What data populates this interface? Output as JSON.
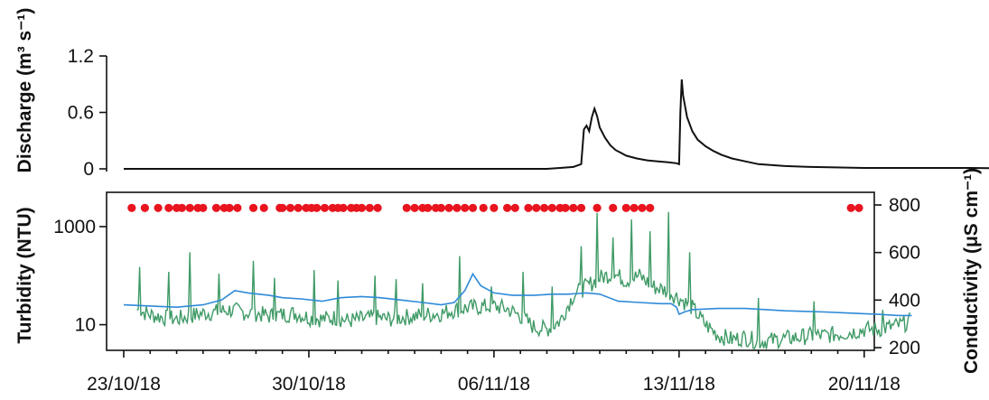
{
  "chart_data": [
    {
      "type": "line",
      "title": "",
      "ylabel": "Discharge (m³ s⁻¹)",
      "ylim": [
        0,
        1.2
      ],
      "yticks": [
        "0",
        "0.6",
        "1.2"
      ],
      "series": [
        {
          "color": "#111111",
          "points": [
            [
              0,
              0.0
            ],
            [
              15,
              0.0
            ],
            [
              16,
              0.0
            ],
            [
              16.5,
              0.01
            ],
            [
              17,
              0.02
            ],
            [
              17.3,
              0.05
            ],
            [
              17.4,
              0.42
            ],
            [
              17.5,
              0.46
            ],
            [
              17.6,
              0.4
            ],
            [
              17.7,
              0.55
            ],
            [
              17.8,
              0.64
            ],
            [
              17.9,
              0.56
            ],
            [
              18.0,
              0.44
            ],
            [
              18.2,
              0.33
            ],
            [
              18.4,
              0.25
            ],
            [
              18.6,
              0.2
            ],
            [
              18.8,
              0.17
            ],
            [
              19.0,
              0.14
            ],
            [
              19.4,
              0.11
            ],
            [
              19.8,
              0.09
            ],
            [
              20.2,
              0.08
            ],
            [
              20.6,
              0.07
            ],
            [
              20.9,
              0.06
            ],
            [
              21.0,
              0.05
            ],
            [
              21.05,
              0.6
            ],
            [
              21.1,
              0.95
            ],
            [
              21.15,
              0.78
            ],
            [
              21.3,
              0.55
            ],
            [
              21.5,
              0.4
            ],
            [
              21.7,
              0.31
            ],
            [
              22.0,
              0.24
            ],
            [
              22.3,
              0.19
            ],
            [
              22.6,
              0.15
            ],
            [
              23.0,
              0.11
            ],
            [
              23.5,
              0.08
            ],
            [
              24.0,
              0.05
            ],
            [
              25.0,
              0.03
            ],
            [
              26,
              0.02
            ],
            [
              28,
              0.01
            ],
            [
              32,
              0.01
            ],
            [
              35,
              0.0
            ],
            [
              40.8,
              0.0
            ]
          ]
        }
      ]
    },
    {
      "type": "line",
      "ylabel": "Turbidity (NTU)",
      "ylabel_right": "Conductivity (μS cm⁻¹)",
      "ylim_left_log": [
        3,
        5000
      ],
      "yticks_left": [
        "10",
        "1000"
      ],
      "ylim_right": [
        200,
        800
      ],
      "yticks_right": [
        "200",
        "400",
        "600",
        "800"
      ],
      "xlabel": "",
      "x_range_days_from_first_tick": [
        -1.15,
        28.6
      ],
      "xticks": [
        "23/10/18",
        "30/10/18",
        "06/11/18",
        "13/11/18",
        "20/11/18"
      ],
      "series": [
        {
          "color": "#3f9a66",
          "axis": "left-log",
          "base_points": [
            [
              0.5,
              20
            ],
            [
              1,
              16
            ],
            [
              1.5,
              14
            ],
            [
              2,
              13
            ],
            [
              2.5,
              15
            ],
            [
              3,
              17
            ],
            [
              3.5,
              18
            ],
            [
              4,
              20
            ],
            [
              4.5,
              18
            ],
            [
              5,
              17
            ],
            [
              5.5,
              15
            ],
            [
              6,
              16
            ],
            [
              6.5,
              17
            ],
            [
              7,
              14
            ],
            [
              7.5,
              13
            ],
            [
              8,
              14
            ],
            [
              8.5,
              12
            ],
            [
              9,
              13
            ],
            [
              9.5,
              14
            ],
            [
              10,
              13
            ],
            [
              10.5,
              14
            ],
            [
              11,
              15
            ],
            [
              11.5,
              16
            ],
            [
              12,
              17
            ],
            [
              12.5,
              20
            ],
            [
              13,
              22
            ],
            [
              13.5,
              23
            ],
            [
              14,
              24
            ],
            [
              14.5,
              21
            ],
            [
              15,
              15
            ],
            [
              15.5,
              9
            ],
            [
              16,
              8
            ],
            [
              16.5,
              12
            ],
            [
              17,
              40
            ],
            [
              17.5,
              60
            ],
            [
              18,
              90
            ],
            [
              18.5,
              110
            ],
            [
              19,
              80
            ],
            [
              19.5,
              100
            ],
            [
              20,
              60
            ],
            [
              20.5,
              50
            ],
            [
              21,
              35
            ],
            [
              21.5,
              22
            ],
            [
              22,
              10
            ],
            [
              22.5,
              6
            ],
            [
              23,
              5
            ],
            [
              23.5,
              5.5
            ],
            [
              24,
              4.5
            ],
            [
              24.5,
              4.8
            ],
            [
              25,
              5.2
            ],
            [
              25.5,
              5.5
            ],
            [
              26,
              6
            ],
            [
              26.5,
              6
            ],
            [
              27,
              6.5
            ],
            [
              27.5,
              7
            ],
            [
              28,
              8
            ],
            [
              28.5,
              8
            ],
            [
              29,
              9
            ],
            [
              29.4,
              10
            ],
            [
              29.8,
              12
            ]
          ],
          "spikes": [
            [
              0.6,
              150
            ],
            [
              1.7,
              120
            ],
            [
              2.5,
              300
            ],
            [
              3.6,
              110
            ],
            [
              4.9,
              200
            ],
            [
              5.7,
              90
            ],
            [
              7.2,
              130
            ],
            [
              8.1,
              80
            ],
            [
              9.5,
              100
            ],
            [
              10.3,
              85
            ],
            [
              11.3,
              70
            ],
            [
              12.7,
              250
            ],
            [
              13.9,
              60
            ],
            [
              15.1,
              120
            ],
            [
              16.2,
              60
            ],
            [
              17.3,
              400
            ],
            [
              17.9,
              1900
            ],
            [
              18.5,
              600
            ],
            [
              19.2,
              1400
            ],
            [
              19.9,
              800
            ],
            [
              20.6,
              2000
            ],
            [
              21.4,
              300
            ],
            [
              24.0,
              35
            ],
            [
              26.1,
              30
            ],
            [
              28.7,
              20
            ],
            [
              30.5,
              30
            ]
          ]
        },
        {
          "color": "#2e8ad8",
          "axis": "right-linear",
          "points": [
            [
              0,
              380
            ],
            [
              1,
              375
            ],
            [
              2,
              370
            ],
            [
              3,
              380
            ],
            [
              3.7,
              400
            ],
            [
              4.2,
              440
            ],
            [
              4.7,
              430
            ],
            [
              5.5,
              420
            ],
            [
              6,
              410
            ],
            [
              6.7,
              405
            ],
            [
              7.5,
              395
            ],
            [
              8.2,
              410
            ],
            [
              9,
              415
            ],
            [
              9.7,
              410
            ],
            [
              10.5,
              400
            ],
            [
              11.3,
              390
            ],
            [
              12,
              380
            ],
            [
              12.5,
              390
            ],
            [
              12.9,
              440
            ],
            [
              13.2,
              510
            ],
            [
              13.5,
              460
            ],
            [
              14,
              430
            ],
            [
              14.7,
              420
            ],
            [
              15.5,
              420
            ],
            [
              16.2,
              425
            ],
            [
              16.8,
              425
            ],
            [
              17.5,
              430
            ],
            [
              18,
              425
            ],
            [
              18.7,
              395
            ],
            [
              19.5,
              390
            ],
            [
              20.3,
              385
            ],
            [
              20.7,
              385
            ],
            [
              20.9,
              370
            ],
            [
              21,
              340
            ],
            [
              21.2,
              350
            ],
            [
              21.5,
              360
            ],
            [
              22.5,
              365
            ],
            [
              23.5,
              365
            ],
            [
              25,
              355
            ],
            [
              26.5,
              350
            ],
            [
              27.5,
              345
            ],
            [
              28.5,
              340
            ],
            [
              29.3,
              335
            ],
            [
              29.8,
              335
            ]
          ]
        }
      ],
      "markers": {
        "color": "#e8141e",
        "y_left_log": 2400,
        "x": [
          0.3,
          0.8,
          1.3,
          1.7,
          2.0,
          2.2,
          2.5,
          2.8,
          3.0,
          3.5,
          3.8,
          4.0,
          4.3,
          4.9,
          5.3,
          5.9,
          6.0,
          6.3,
          6.6,
          6.9,
          7.1,
          7.3,
          7.6,
          7.9,
          8.1,
          8.3,
          8.6,
          8.8,
          9.0,
          9.3,
          9.6,
          10.7,
          11.0,
          11.3,
          11.5,
          11.8,
          12.0,
          12.3,
          12.6,
          12.9,
          13.2,
          13.6,
          14.0,
          14.5,
          14.8,
          15.3,
          15.6,
          15.9,
          16.2,
          16.5,
          16.7,
          17.0,
          17.3,
          17.9,
          18.5,
          19.0,
          19.3,
          19.6,
          19.9,
          27.5,
          27.8
        ]
      }
    }
  ]
}
